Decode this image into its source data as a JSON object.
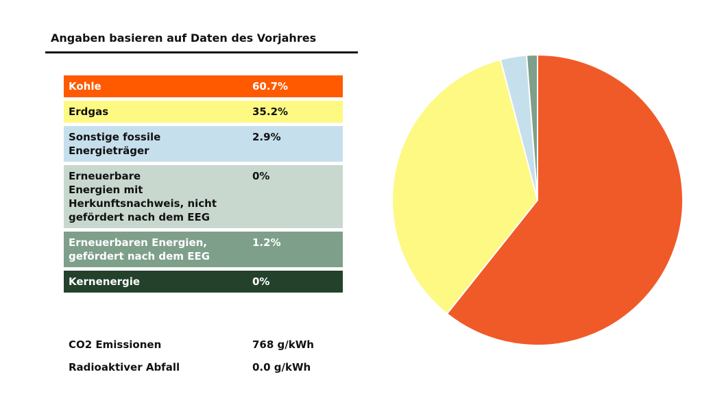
{
  "heading": "Angaben basieren auf Daten des Vorjahres",
  "chart_data": {
    "type": "pie",
    "slices": [
      {
        "label": "Kohle",
        "value_label": "60.7%",
        "value": 60.7,
        "color": "#f05a28",
        "legend_bg": "#ff5a00",
        "text_color": "#ffffff",
        "lines": [
          "Kohle"
        ]
      },
      {
        "label": "Erdgas",
        "value_label": "35.2%",
        "value": 35.2,
        "color": "#fdf983",
        "legend_bg": "#fdf983",
        "text_color": "#111111",
        "lines": [
          "Erdgas"
        ]
      },
      {
        "label": "Sonstige fossile Energieträger",
        "value_label": "2.9%",
        "value": 2.9,
        "color": "#c6dfed",
        "legend_bg": "#c6dfed",
        "text_color": "#111111",
        "lines": [
          "Sonstige fossile",
          "Energieträger"
        ]
      },
      {
        "label": "Erneuerbare Energien mit Herkunftsnachweis, nicht gefördert nach dem EEG",
        "value_label": "0%",
        "value": 0,
        "color": "#c8d8cf",
        "legend_bg": "#c8d8cf",
        "text_color": "#111111",
        "lines": [
          "Erneuerbare",
          "Energien mit",
          "Herkunftsnachweis, nicht",
          "gefördert nach dem EEG"
        ]
      },
      {
        "label": "Erneuerbaren Energien, gefördert nach dem EEG",
        "value_label": "1.2%",
        "value": 1.2,
        "color": "#7e9f8a",
        "legend_bg": "#7e9f8a",
        "text_color": "#ffffff",
        "lines": [
          "Erneuerbaren Energien,",
          "gefördert nach dem EEG"
        ]
      },
      {
        "label": "Kernenergie",
        "value_label": "0%",
        "value": 0,
        "color": "#24412b",
        "legend_bg": "#24412b",
        "text_color": "#ffffff",
        "lines": [
          "Kernenergie"
        ]
      }
    ]
  },
  "stats": [
    {
      "label": "CO2 Emissionen",
      "value": "768 g/kWh"
    },
    {
      "label": "Radioaktiver Abfall",
      "value": "0.0 g/kWh"
    }
  ]
}
